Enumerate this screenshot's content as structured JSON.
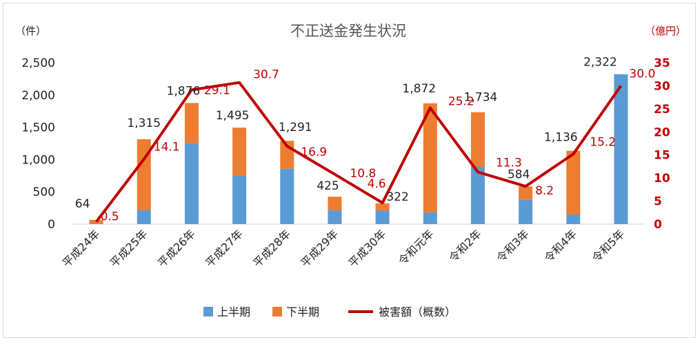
{
  "chart_data": {
    "type": "bar",
    "title": "不正送金発生状況",
    "y_left_unit": "（件）",
    "y_right_unit": "（億円）",
    "categories": [
      "平成24年",
      "平成25年",
      "平成26年",
      "平成27年",
      "平成28年",
      "平成29年",
      "平成30年",
      "令和元年",
      "令和2年",
      "令和3年",
      "令和4年",
      "令和5年"
    ],
    "left_ylim": [
      0,
      2500
    ],
    "left_ticks": [
      "0",
      "500",
      "1,000",
      "1,500",
      "2,000",
      "2,500"
    ],
    "right_ylim": [
      0,
      35
    ],
    "right_ticks": [
      "0",
      "5",
      "10",
      "15",
      "20",
      "25",
      "30",
      "35"
    ],
    "series": [
      {
        "name": "上半期",
        "type": "bar",
        "axis": "left",
        "color": "#5b9bd5",
        "values": [
          5,
          220,
          1254,
          754,
          858,
          212,
          209,
          183,
          887,
          376,
          150,
          2322
        ]
      },
      {
        "name": "下半期",
        "type": "bar",
        "axis": "left",
        "color": "#ed7d31",
        "values": [
          59,
          1095,
          622,
          741,
          433,
          213,
          113,
          1689,
          847,
          208,
          986,
          0
        ]
      },
      {
        "name": "被害額（概数）",
        "type": "line",
        "axis": "right",
        "color": "#c00000",
        "values": [
          0.5,
          14.1,
          29.1,
          30.7,
          16.9,
          10.8,
          4.6,
          25.2,
          11.3,
          8.2,
          15.2,
          30.0
        ]
      }
    ],
    "total_labels": [
      "64",
      "1,315",
      "1,876",
      "1,495",
      "1,291",
      "425",
      "322",
      "1,872",
      "1,734",
      "584",
      "1,136",
      "2,322"
    ],
    "amount_labels": [
      "0.5",
      "14.1",
      "29.1",
      "30.7",
      "16.9",
      "10.8",
      "4.6",
      "25.2",
      "11.3",
      "8.2",
      "15.2",
      "30.0"
    ],
    "legend": {
      "position": "bottom"
    },
    "grid": false
  }
}
